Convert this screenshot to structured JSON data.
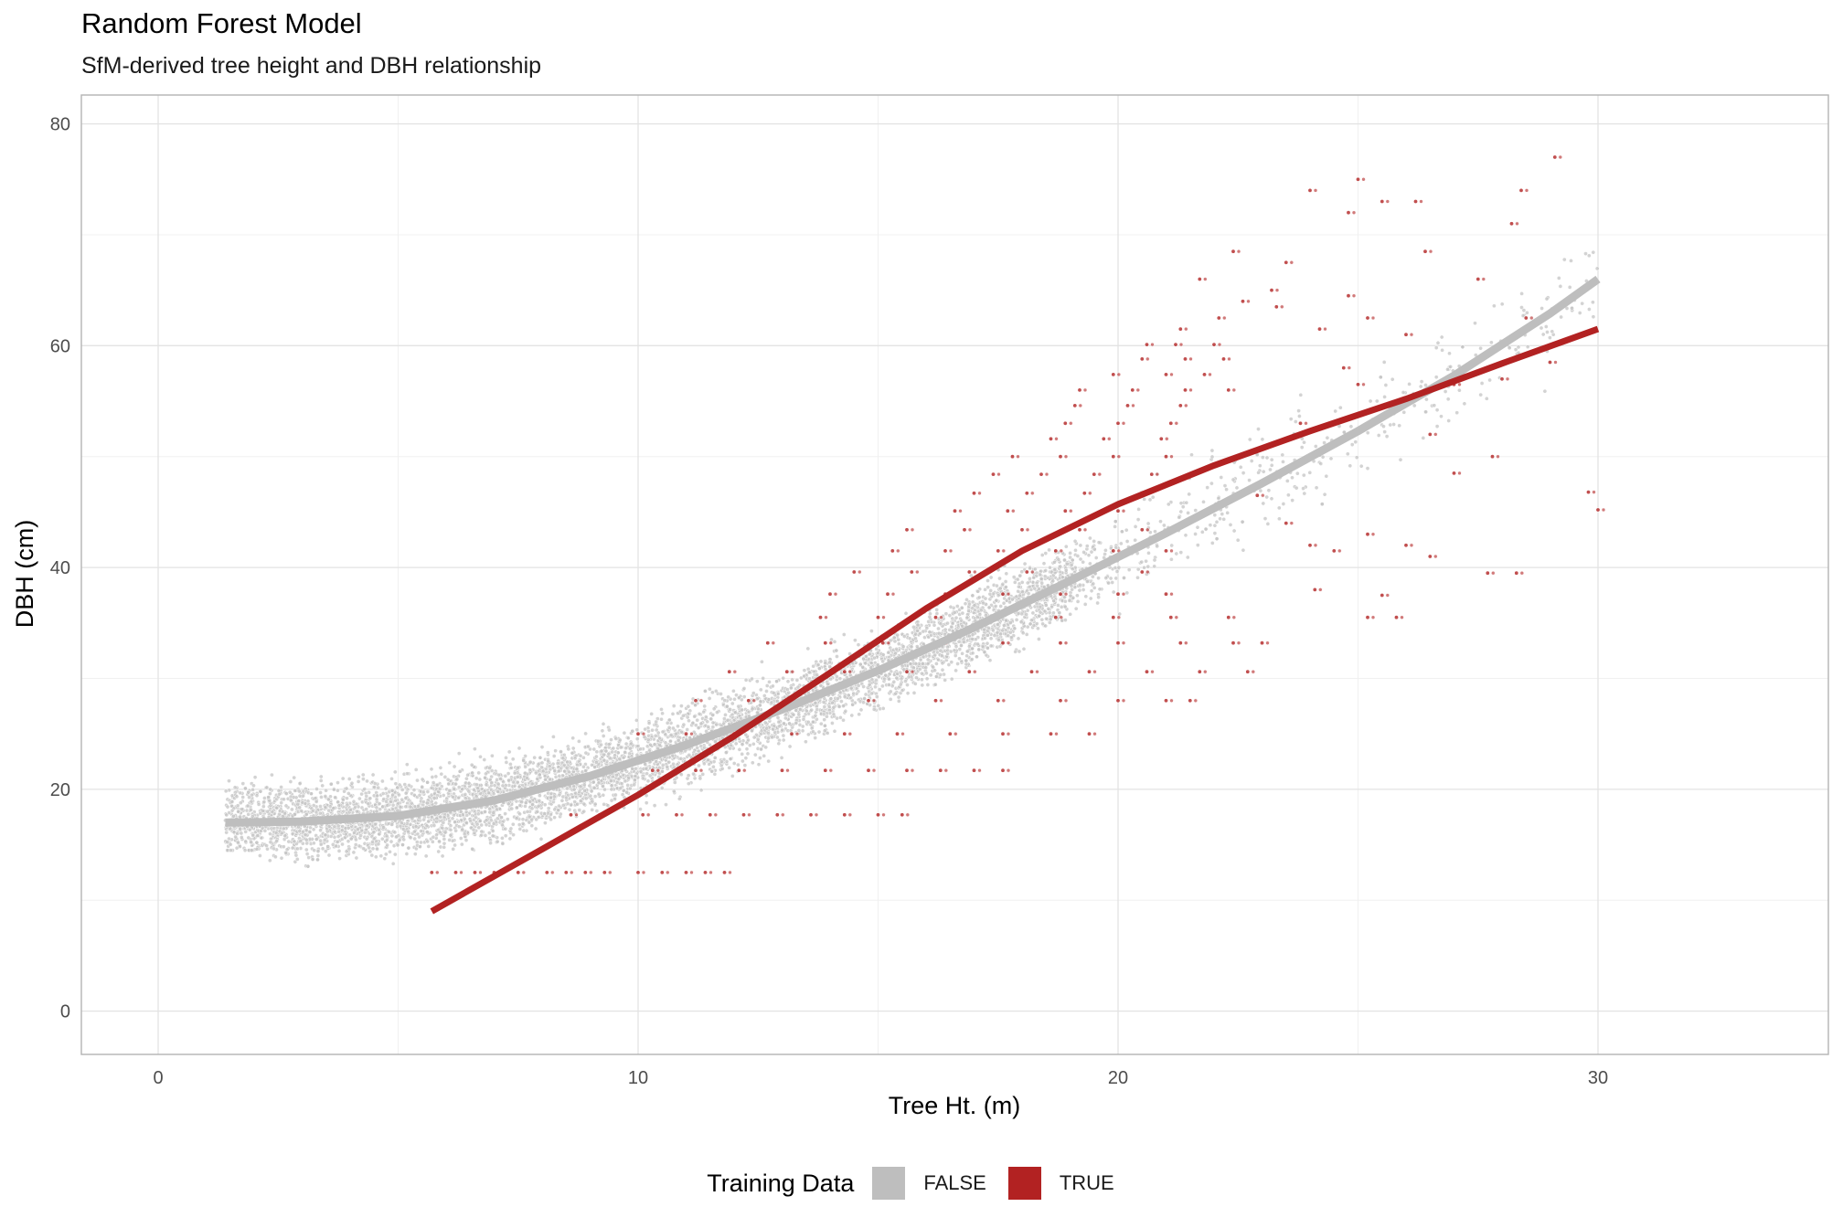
{
  "chart_data": {
    "type": "scatter",
    "title": "Random Forest Model",
    "subtitle": "SfM-derived tree height and DBH relationship",
    "xlabel": "Tree Ht. (m)",
    "ylabel": "DBH (cm)",
    "xlim": [
      -1.6,
      34.8
    ],
    "ylim": [
      -3.9,
      82.6
    ],
    "x_ticks": [
      0,
      10,
      20,
      30
    ],
    "y_ticks": [
      0,
      20,
      40,
      60,
      80
    ],
    "grid": true,
    "legend": {
      "title": "Training Data",
      "placement": "bottom",
      "entries": [
        {
          "label": "FALSE",
          "color": "#bebebe"
        },
        {
          "label": "TRUE",
          "color": "#b22222"
        }
      ]
    },
    "series": [
      {
        "name": "FALSE",
        "color": "#bebebe",
        "points_description": "dense cloud of predicted values",
        "trend": {
          "x": [
            1.4,
            3,
            5,
            7,
            9,
            11,
            13,
            15,
            17,
            19,
            21,
            23,
            25,
            27,
            29,
            30
          ],
          "y": [
            17.0,
            17.1,
            17.6,
            19.0,
            21.2,
            24.0,
            27.2,
            30.7,
            34.6,
            38.8,
            43.1,
            47.6,
            52.3,
            57.3,
            62.9,
            66.0
          ]
        }
      },
      {
        "name": "TRUE",
        "color": "#b22222",
        "trend": {
          "x": [
            5.7,
            8,
            10,
            12,
            14,
            16,
            18,
            20,
            22,
            24,
            26,
            28,
            30
          ],
          "y": [
            9.0,
            14.6,
            19.5,
            24.8,
            30.5,
            36.3,
            41.5,
            45.7,
            49.2,
            52.3,
            55.2,
            58.4,
            61.5
          ]
        },
        "points": [
          [
            5.7,
            12.5
          ],
          [
            6.2,
            12.5
          ],
          [
            6.6,
            12.5
          ],
          [
            7.0,
            12.5
          ],
          [
            7.5,
            12.5
          ],
          [
            8.1,
            12.5
          ],
          [
            8.5,
            12.5
          ],
          [
            8.9,
            12.5
          ],
          [
            9.3,
            12.5
          ],
          [
            10.0,
            12.5
          ],
          [
            10.5,
            12.5
          ],
          [
            11.0,
            12.5
          ],
          [
            11.4,
            12.5
          ],
          [
            11.8,
            12.5
          ],
          [
            8.6,
            17.7
          ],
          [
            9.2,
            17.7
          ],
          [
            10.1,
            17.7
          ],
          [
            10.8,
            17.7
          ],
          [
            11.5,
            17.7
          ],
          [
            12.2,
            17.7
          ],
          [
            12.9,
            17.7
          ],
          [
            13.6,
            17.7
          ],
          [
            14.3,
            17.7
          ],
          [
            15.0,
            17.7
          ],
          [
            15.5,
            17.7
          ],
          [
            10.3,
            21.7
          ],
          [
            11.2,
            21.7
          ],
          [
            12.1,
            21.7
          ],
          [
            13.0,
            21.7
          ],
          [
            13.9,
            21.7
          ],
          [
            14.8,
            21.7
          ],
          [
            15.6,
            21.7
          ],
          [
            16.3,
            21.7
          ],
          [
            17.0,
            21.7
          ],
          [
            17.6,
            21.7
          ],
          [
            10.0,
            25.0
          ],
          [
            11.0,
            25.0
          ],
          [
            12.0,
            25.0
          ],
          [
            13.2,
            25.0
          ],
          [
            14.3,
            25.0
          ],
          [
            15.4,
            25.0
          ],
          [
            16.5,
            25.0
          ],
          [
            17.6,
            25.0
          ],
          [
            18.6,
            25.0
          ],
          [
            19.4,
            25.0
          ],
          [
            11.2,
            28.0
          ],
          [
            12.3,
            28.0
          ],
          [
            13.5,
            28.0
          ],
          [
            14.8,
            28.0
          ],
          [
            16.2,
            28.0
          ],
          [
            17.5,
            28.0
          ],
          [
            18.8,
            28.0
          ],
          [
            20.0,
            28.0
          ],
          [
            21.0,
            28.0
          ],
          [
            21.5,
            28.0
          ],
          [
            11.9,
            30.6
          ],
          [
            13.1,
            30.6
          ],
          [
            14.3,
            30.6
          ],
          [
            15.6,
            30.6
          ],
          [
            16.9,
            30.6
          ],
          [
            18.2,
            30.6
          ],
          [
            19.4,
            30.6
          ],
          [
            20.6,
            30.6
          ],
          [
            21.7,
            30.6
          ],
          [
            22.7,
            30.6
          ],
          [
            12.7,
            33.2
          ],
          [
            13.9,
            33.2
          ],
          [
            15.1,
            33.2
          ],
          [
            16.3,
            33.2
          ],
          [
            17.6,
            33.2
          ],
          [
            18.8,
            33.2
          ],
          [
            20.0,
            33.2
          ],
          [
            21.3,
            33.2
          ],
          [
            22.4,
            33.2
          ],
          [
            23.0,
            33.2
          ],
          [
            13.8,
            35.5
          ],
          [
            15.0,
            35.5
          ],
          [
            16.2,
            35.5
          ],
          [
            17.4,
            35.5
          ],
          [
            18.7,
            35.5
          ],
          [
            19.9,
            35.5
          ],
          [
            21.1,
            35.5
          ],
          [
            22.3,
            35.5
          ],
          [
            14.0,
            37.6
          ],
          [
            15.2,
            37.6
          ],
          [
            16.4,
            37.6
          ],
          [
            17.6,
            37.6
          ],
          [
            18.8,
            37.6
          ],
          [
            20.0,
            37.6
          ],
          [
            21.0,
            37.6
          ],
          [
            14.5,
            39.6
          ],
          [
            15.7,
            39.6
          ],
          [
            16.9,
            39.6
          ],
          [
            18.1,
            39.6
          ],
          [
            19.3,
            39.6
          ],
          [
            20.5,
            39.6
          ],
          [
            15.3,
            41.5
          ],
          [
            16.4,
            41.5
          ],
          [
            17.5,
            41.5
          ],
          [
            18.7,
            41.5
          ],
          [
            19.9,
            41.5
          ],
          [
            21.0,
            41.5
          ],
          [
            15.6,
            43.4
          ],
          [
            16.8,
            43.4
          ],
          [
            18.0,
            43.4
          ],
          [
            19.2,
            43.4
          ],
          [
            20.5,
            43.4
          ],
          [
            16.6,
            45.1
          ],
          [
            17.7,
            45.1
          ],
          [
            18.9,
            45.1
          ],
          [
            20.0,
            45.1
          ],
          [
            17.0,
            46.7
          ],
          [
            18.1,
            46.7
          ],
          [
            19.3,
            46.7
          ],
          [
            20.5,
            46.7
          ],
          [
            17.4,
            48.4
          ],
          [
            18.4,
            48.4
          ],
          [
            19.5,
            48.4
          ],
          [
            20.7,
            48.4
          ],
          [
            17.8,
            50.0
          ],
          [
            18.8,
            50.0
          ],
          [
            19.9,
            50.0
          ],
          [
            21.0,
            50.0
          ],
          [
            18.6,
            51.6
          ],
          [
            19.7,
            51.6
          ],
          [
            20.9,
            51.6
          ],
          [
            18.9,
            53.0
          ],
          [
            20.0,
            53.0
          ],
          [
            21.1,
            53.0
          ],
          [
            19.1,
            54.6
          ],
          [
            20.2,
            54.6
          ],
          [
            21.3,
            54.6
          ],
          [
            19.2,
            56.0
          ],
          [
            20.3,
            56.0
          ],
          [
            21.4,
            56.0
          ],
          [
            22.3,
            56.0
          ],
          [
            19.9,
            57.4
          ],
          [
            21.0,
            57.4
          ],
          [
            21.8,
            57.4
          ],
          [
            20.5,
            58.8
          ],
          [
            21.4,
            58.8
          ],
          [
            22.2,
            58.8
          ],
          [
            20.6,
            60.1
          ],
          [
            21.2,
            60.1
          ],
          [
            22.0,
            60.1
          ],
          [
            21.3,
            61.5
          ],
          [
            22.1,
            62.5
          ],
          [
            22.6,
            64.0
          ],
          [
            23.2,
            65.0
          ],
          [
            21.7,
            66.0
          ],
          [
            22.4,
            68.5
          ],
          [
            23.5,
            67.5
          ],
          [
            24.0,
            74.0
          ],
          [
            24.8,
            72.0
          ],
          [
            25.0,
            75.0
          ],
          [
            25.5,
            73.0
          ],
          [
            26.2,
            73.0
          ],
          [
            26.4,
            68.5
          ],
          [
            28.4,
            74.0
          ],
          [
            28.2,
            71.0
          ],
          [
            29.1,
            77.0
          ],
          [
            23.3,
            63.5
          ],
          [
            24.2,
            61.5
          ],
          [
            24.8,
            64.5
          ],
          [
            25.2,
            62.5
          ],
          [
            26.0,
            61.0
          ],
          [
            27.5,
            66.0
          ],
          [
            28.0,
            57.0
          ],
          [
            28.5,
            62.5
          ],
          [
            29.0,
            58.5
          ],
          [
            27.0,
            56.5
          ],
          [
            24.7,
            58.0
          ],
          [
            25.0,
            56.5
          ],
          [
            23.8,
            53.0
          ],
          [
            26.5,
            52.0
          ],
          [
            27.8,
            50.0
          ],
          [
            27.0,
            48.5
          ],
          [
            22.9,
            46.5
          ],
          [
            23.5,
            44.0
          ],
          [
            24.0,
            42.0
          ],
          [
            25.2,
            43.0
          ],
          [
            26.0,
            42.0
          ],
          [
            24.1,
            38.0
          ],
          [
            25.5,
            37.5
          ],
          [
            27.7,
            39.5
          ],
          [
            28.3,
            39.5
          ],
          [
            25.2,
            35.5
          ],
          [
            25.8,
            35.5
          ],
          [
            29.8,
            46.8
          ],
          [
            30.0,
            45.2
          ],
          [
            26.5,
            41.0
          ],
          [
            24.5,
            41.5
          ]
        ]
      }
    ]
  }
}
